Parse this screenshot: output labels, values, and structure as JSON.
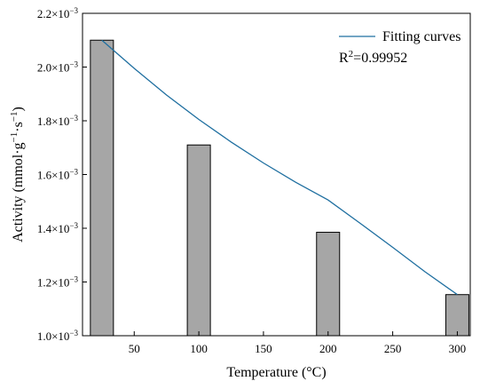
{
  "chart_data": {
    "type": "bar",
    "x": [
      25,
      100,
      200,
      300
    ],
    "bars": {
      "name": "",
      "values": [
        0.0021,
        0.00171,
        0.001385,
        0.001153
      ],
      "color": "#a6a6a6"
    },
    "fit": {
      "name": "Fitting curves",
      "color": "#1f6fa0",
      "x": [
        25,
        50,
        75,
        100,
        125,
        150,
        175,
        200,
        225,
        250,
        275,
        300
      ],
      "y": [
        0.0021,
        0.001995,
        0.001896,
        0.001805,
        0.001721,
        0.001643,
        0.001571,
        0.001505,
        0.001418,
        0.001329,
        0.001238,
        0.001153
      ]
    },
    "annotation": {
      "prefix": "R",
      "sup": "2",
      "suffix": "=0.99952"
    },
    "xlabel": "Temperature (°C)",
    "ylabel": {
      "pre": "Activity (mmol·g",
      "sup1": "−1",
      "mid": "·s",
      "sup2": "−1",
      "post": ")"
    },
    "xlim": [
      10,
      310
    ],
    "ylim": [
      0.001,
      0.0022
    ],
    "xticks": [
      50,
      100,
      150,
      200,
      250,
      300
    ],
    "xtick_labels": [
      "50",
      "100",
      "150",
      "200",
      "250",
      "300"
    ],
    "yticks": [
      0.001,
      0.0012,
      0.0014,
      0.0016,
      0.0018,
      0.002,
      0.0022
    ],
    "ytick_labels": [
      {
        "mant": "1.0×10",
        "exp": "−3"
      },
      {
        "mant": "1.2×10",
        "exp": "−3"
      },
      {
        "mant": "1.4×10",
        "exp": "−3"
      },
      {
        "mant": "1.6×10",
        "exp": "−3"
      },
      {
        "mant": "1.8×10",
        "exp": "−3"
      },
      {
        "mant": "2.0×10",
        "exp": "−3"
      },
      {
        "mant": "2.2×10",
        "exp": "−3"
      }
    ],
    "legend_position": "top-right",
    "grid": false
  }
}
